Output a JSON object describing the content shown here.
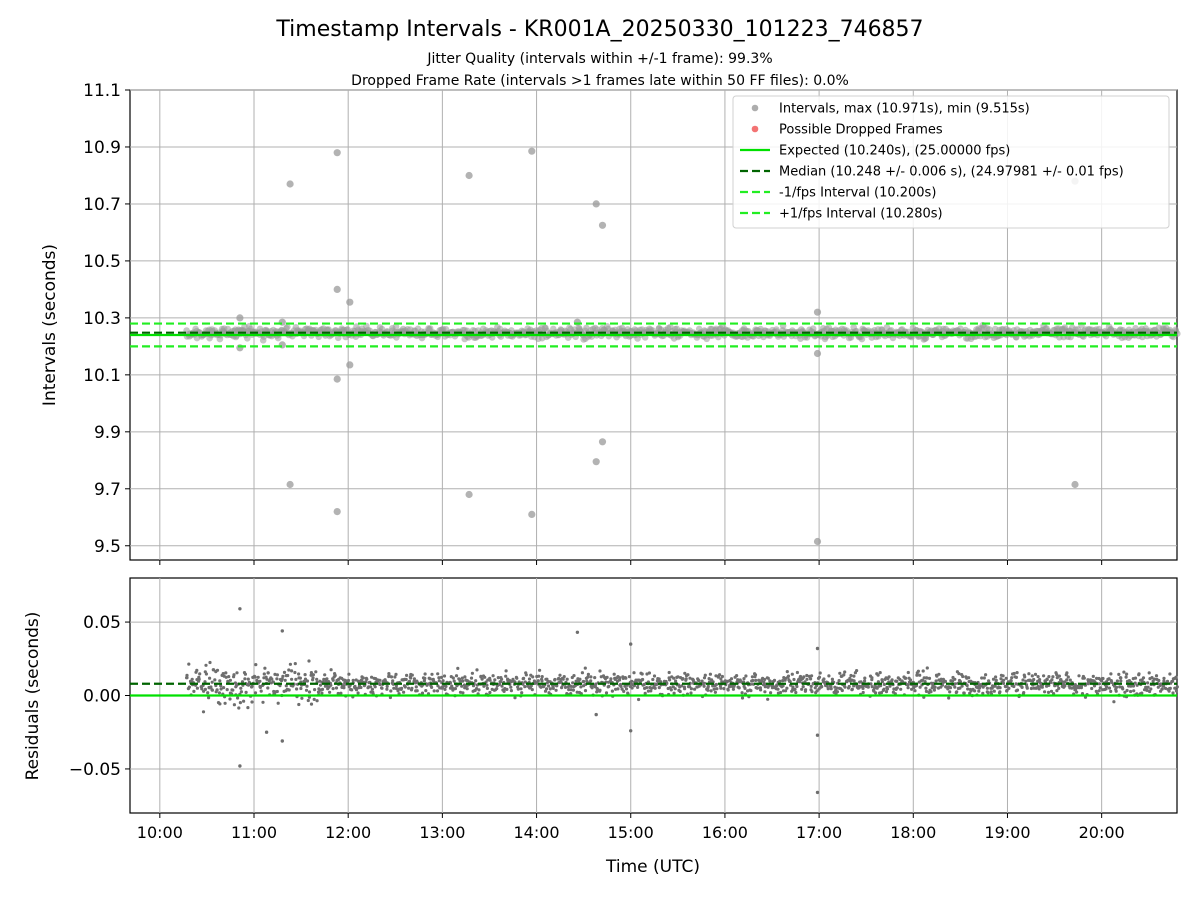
{
  "chart_data": [
    {
      "type": "scatter",
      "title": "Timestamp Intervals - KR001A_20250330_101223_746857",
      "subtitle_lines": [
        "Jitter Quality (intervals within +/-1 frame): 99.3%",
        "Dropped Frame Rate (intervals >1 frames late within 50 FF files): 0.0%"
      ],
      "xlabel": "",
      "ylabel": "Intervals (seconds)",
      "xlim": [
        "09:41",
        "20:48"
      ],
      "ylim": [
        9.45,
        11.1
      ],
      "yticks": [
        "9.5",
        "9.7",
        "9.9",
        "10.1",
        "10.3",
        "10.5",
        "10.7",
        "10.9",
        "11.1"
      ],
      "grid": true,
      "legend_position": "top-right",
      "legend": [
        {
          "label": "Intervals, max (10.971s), min (9.515s)",
          "marker": "point",
          "color": "#999999"
        },
        {
          "label": "Possible Dropped Frames",
          "marker": "point",
          "color": "#f05050"
        },
        {
          "label": "Expected (10.240s), (25.00000 fps)",
          "marker": "solid",
          "color": "#00e000"
        },
        {
          "label": "Median (10.248 +/- 0.006 s), (24.97981 +/- 0.01 fps)",
          "marker": "dashed",
          "color": "#006400"
        },
        {
          "label": "-1/fps Interval (10.200s)",
          "marker": "dashed",
          "color": "#22ee22"
        },
        {
          "label": "+1/fps Interval (10.280s)",
          "marker": "dashed",
          "color": "#22ee22"
        }
      ],
      "reference_lines": [
        {
          "name": "Expected",
          "y": 10.24,
          "style": "solid",
          "color": "#00e000"
        },
        {
          "name": "Median",
          "y": 10.248,
          "style": "dashed",
          "color": "#006400"
        },
        {
          "name": "-1/fps",
          "y": 10.2,
          "style": "dashed",
          "color": "#22ee22"
        },
        {
          "name": "+1/fps",
          "y": 10.28,
          "style": "dashed",
          "color": "#22ee22"
        }
      ],
      "dense_band": {
        "x_range": [
          "10:17",
          "20:48"
        ],
        "y_center": 10.248,
        "y_spread": 0.02
      },
      "outliers": [
        {
          "x": "10:51",
          "y": 10.3
        },
        {
          "x": "10:51",
          "y": 10.195
        },
        {
          "x": "11:18",
          "y": 10.285
        },
        {
          "x": "11:18",
          "y": 10.205
        },
        {
          "x": "11:23",
          "y": 10.77
        },
        {
          "x": "11:23",
          "y": 9.715
        },
        {
          "x": "11:53",
          "y": 10.88
        },
        {
          "x": "11:53",
          "y": 10.4
        },
        {
          "x": "11:53",
          "y": 10.085
        },
        {
          "x": "11:53",
          "y": 9.62
        },
        {
          "x": "12:01",
          "y": 10.355
        },
        {
          "x": "12:01",
          "y": 10.135
        },
        {
          "x": "13:17",
          "y": 10.8
        },
        {
          "x": "13:17",
          "y": 9.68
        },
        {
          "x": "13:57",
          "y": 10.885
        },
        {
          "x": "13:57",
          "y": 9.61
        },
        {
          "x": "14:26",
          "y": 10.285
        },
        {
          "x": "14:38",
          "y": 10.7
        },
        {
          "x": "14:38",
          "y": 9.795
        },
        {
          "x": "14:42",
          "y": 10.625
        },
        {
          "x": "14:42",
          "y": 9.865
        },
        {
          "x": "16:59",
          "y": 10.32
        },
        {
          "x": "16:59",
          "y": 10.175
        },
        {
          "x": "16:59",
          "y": 9.515
        },
        {
          "x": "19:43",
          "y": 10.78
        },
        {
          "x": "19:43",
          "y": 9.715
        }
      ]
    },
    {
      "type": "scatter",
      "title": "",
      "xlabel": "Time (UTC)",
      "ylabel": "Residuals (seconds)",
      "xlim": [
        "09:41",
        "20:48"
      ],
      "ylim": [
        -0.08,
        0.08
      ],
      "xticks": [
        "10:00",
        "11:00",
        "12:00",
        "13:00",
        "14:00",
        "15:00",
        "16:00",
        "17:00",
        "18:00",
        "19:00",
        "20:00"
      ],
      "yticks": [
        "−0.05",
        "0.00",
        "0.05"
      ],
      "ytick_values": [
        -0.05,
        0.0,
        0.05
      ],
      "grid": true,
      "reference_lines": [
        {
          "name": "Expected",
          "y": 0.0,
          "style": "solid",
          "color": "#00e000"
        },
        {
          "name": "Median",
          "y": 0.008,
          "style": "dashed",
          "color": "#006400"
        }
      ],
      "dense_band": {
        "x_range": [
          "10:17",
          "20:48"
        ],
        "y_center": 0.008,
        "y_spread": 0.007
      },
      "outliers": [
        {
          "x": "10:51",
          "y": 0.059
        },
        {
          "x": "10:51",
          "y": -0.048
        },
        {
          "x": "11:08",
          "y": -0.025
        },
        {
          "x": "11:18",
          "y": 0.044
        },
        {
          "x": "11:18",
          "y": -0.031
        },
        {
          "x": "14:26",
          "y": 0.043
        },
        {
          "x": "14:38",
          "y": -0.013
        },
        {
          "x": "15:00",
          "y": 0.035
        },
        {
          "x": "15:00",
          "y": -0.024
        },
        {
          "x": "16:59",
          "y": 0.032
        },
        {
          "x": "16:59",
          "y": -0.027
        },
        {
          "x": "16:59",
          "y": -0.066
        }
      ]
    }
  ]
}
